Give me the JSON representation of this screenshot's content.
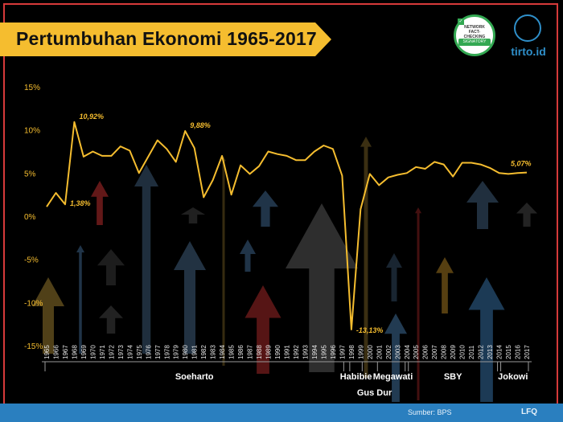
{
  "header": {
    "title": "Pertumbuhan Ekonomi 1965-2017"
  },
  "badge": {
    "lines": "NETWORK FACT-CHECKING",
    "band": "SIGNATORY"
  },
  "logo": {
    "name": "tirto.id"
  },
  "footer": {
    "source": "Sumber: BPS",
    "credit": "LFQ"
  },
  "colors": {
    "line": "#f5bd2f",
    "frame": "#d63a3a",
    "footer": "#2a7fbf",
    "text": "#ffffff"
  },
  "chart_data": {
    "type": "line",
    "title": "Pertumbuhan Ekonomi 1965-2017",
    "xlabel": "",
    "ylabel": "",
    "ylim": [
      -15,
      15
    ],
    "yticks": [
      "15%",
      "10%",
      "5%",
      "0%",
      "-5%",
      "-10%",
      "-15%"
    ],
    "x": [
      "1965",
      "1966",
      "1967",
      "1968",
      "1969",
      "1970",
      "1971",
      "1972",
      "1973",
      "1974",
      "1975",
      "1976",
      "1977",
      "1978",
      "1979",
      "1980",
      "1981",
      "1982",
      "1983",
      "1984",
      "1985",
      "1986",
      "1987",
      "1988",
      "1989",
      "1990",
      "1991",
      "1992",
      "1993",
      "1994",
      "1995",
      "1996",
      "1997",
      "1998",
      "1999",
      "2000",
      "2001",
      "2002",
      "2003",
      "2004",
      "2005",
      "2006",
      "2007",
      "2008",
      "2009",
      "2010",
      "2011",
      "2012",
      "2013",
      "2014",
      "2015",
      "2016",
      "2017"
    ],
    "series": [
      {
        "values": [
          1.1,
          2.7,
          1.38,
          10.92,
          6.9,
          7.5,
          7.0,
          7.0,
          8.1,
          7.6,
          5.0,
          6.9,
          8.8,
          7.8,
          6.3,
          9.88,
          7.9,
          2.2,
          4.2,
          7.0,
          2.5,
          5.9,
          4.9,
          5.8,
          7.5,
          7.2,
          7.0,
          6.5,
          6.5,
          7.5,
          8.2,
          7.8,
          4.7,
          -13.13,
          0.8,
          4.9,
          3.6,
          4.5,
          4.8,
          5.0,
          5.7,
          5.5,
          6.3,
          6.0,
          4.6,
          6.2,
          6.2,
          6.0,
          5.6,
          5.0,
          4.9,
          5.0,
          5.07
        ]
      }
    ],
    "annotations": [
      {
        "index": 2,
        "text": "1,38%"
      },
      {
        "index": 3,
        "text": "10,92%"
      },
      {
        "index": 15,
        "text": "9,88%"
      },
      {
        "index": 33,
        "text": "-13,13%"
      },
      {
        "index": 52,
        "text": "5,07%"
      }
    ],
    "eras": [
      {
        "label": "Soeharto",
        "start": 0,
        "end": 32,
        "row": 0
      },
      {
        "label": "Habibie",
        "start": 33,
        "end": 34,
        "row": 0
      },
      {
        "label": "Gus Dur",
        "start": 35,
        "end": 36,
        "row": 1
      },
      {
        "label": "Megawati",
        "start": 36,
        "end": 39,
        "row": 0
      },
      {
        "label": "SBY",
        "start": 39,
        "end": 49,
        "row": 0
      },
      {
        "label": "Jokowi",
        "start": 49,
        "end": 52,
        "row": 0
      }
    ],
    "grid": false,
    "legend": "none"
  }
}
